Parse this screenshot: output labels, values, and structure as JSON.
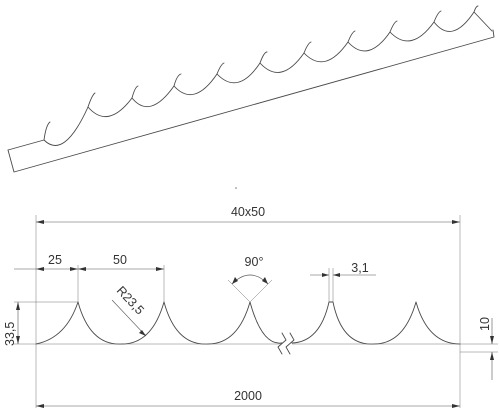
{
  "dimensions": {
    "profile": "40x50",
    "scallop_width": "25",
    "pitch": "50",
    "radius": "R23,5",
    "angle": "90°",
    "tip_thickness": "3,1",
    "height": "33,5",
    "base_height": "10",
    "total_length": "2000"
  },
  "colors": {
    "line": "#4a4a4a",
    "dimension": "#555555",
    "text": "#333333",
    "background": "#ffffff"
  }
}
